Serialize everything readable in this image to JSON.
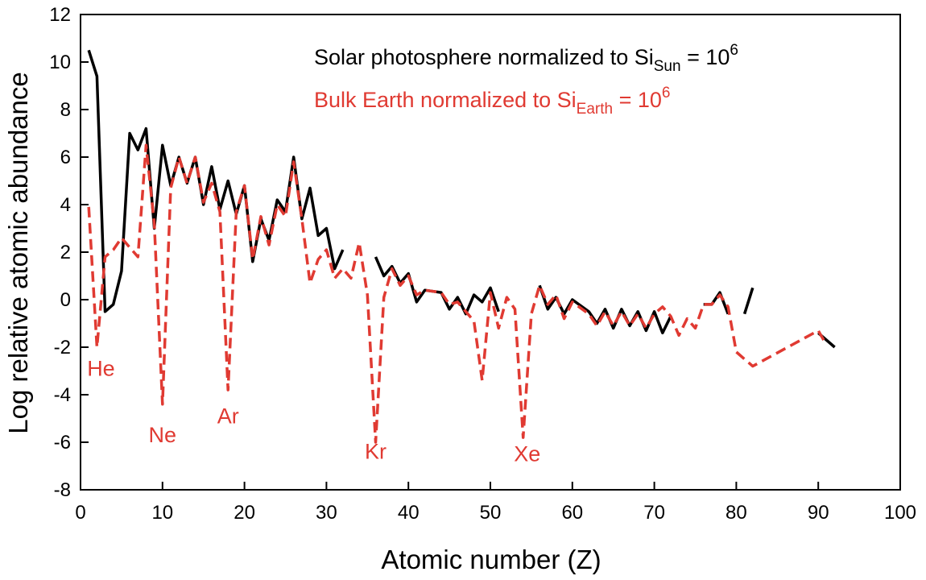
{
  "chart_data": {
    "type": "line",
    "title": "",
    "xlabel": "Atomic number (Z)",
    "ylabel": "Log relative atomic abundance",
    "xlim": [
      0,
      100
    ],
    "ylim": [
      -8,
      12
    ],
    "x_ticks": [
      "0",
      "10",
      "20",
      "30",
      "40",
      "50",
      "60",
      "70",
      "80",
      "90",
      "100"
    ],
    "y_ticks": [
      "-8",
      "-6",
      "-4",
      "-2",
      "0",
      "2",
      "4",
      "6",
      "8",
      "10",
      "12"
    ],
    "grid": false,
    "legend": [
      {
        "main": "Solar photosphere normalized to Si",
        "sub": "Sun",
        "tail": " = 10",
        "sup": "6",
        "color": "#000000",
        "dashed": false
      },
      {
        "main": "Bulk Earth normalized to Si",
        "sub": "Earth",
        "tail": " = 10",
        "sup": "6",
        "color": "#e03a32",
        "dashed": true
      }
    ],
    "series": [
      {
        "name": "Solar photosphere normalized to Si_Sun = 10^6",
        "color": "#000000",
        "dashed": false,
        "segments": [
          [
            [
              1,
              10.5
            ],
            [
              2,
              9.4
            ],
            [
              3,
              -0.5
            ],
            [
              4,
              -0.2
            ],
            [
              5,
              1.2
            ],
            [
              6,
              7.0
            ],
            [
              7,
              6.3
            ],
            [
              8,
              7.2
            ],
            [
              9,
              3.0
            ],
            [
              10,
              6.5
            ],
            [
              11,
              4.8
            ],
            [
              12,
              6.0
            ],
            [
              13,
              4.9
            ],
            [
              14,
              6.0
            ],
            [
              15,
              4.0
            ],
            [
              16,
              5.6
            ],
            [
              17,
              3.8
            ],
            [
              18,
              5.0
            ],
            [
              19,
              3.6
            ],
            [
              20,
              4.8
            ],
            [
              21,
              1.6
            ],
            [
              22,
              3.4
            ],
            [
              23,
              2.5
            ],
            [
              24,
              4.2
            ],
            [
              25,
              3.7
            ],
            [
              26,
              6.0
            ],
            [
              27,
              3.4
            ],
            [
              28,
              4.7
            ],
            [
              29,
              2.7
            ],
            [
              30,
              3.0
            ],
            [
              31,
              1.3
            ],
            [
              32,
              2.1
            ]
          ],
          [
            [
              36,
              1.8
            ],
            [
              37,
              1.0
            ],
            [
              38,
              1.4
            ],
            [
              39,
              0.7
            ],
            [
              40,
              1.1
            ],
            [
              41,
              -0.1
            ],
            [
              42,
              0.4
            ],
            [
              44,
              0.3
            ],
            [
              45,
              -0.4
            ],
            [
              46,
              0.1
            ],
            [
              47,
              -0.6
            ],
            [
              48,
              0.2
            ],
            [
              49,
              -0.1
            ],
            [
              50,
              0.5
            ],
            [
              51,
              -0.5
            ]
          ],
          [
            [
              56,
              0.6
            ],
            [
              57,
              -0.4
            ],
            [
              58,
              0.1
            ],
            [
              59,
              -0.6
            ],
            [
              60,
              0.0
            ],
            [
              62,
              -0.5
            ],
            [
              63,
              -1.0
            ],
            [
              64,
              -0.4
            ],
            [
              65,
              -1.2
            ],
            [
              66,
              -0.4
            ],
            [
              67,
              -1.1
            ],
            [
              68,
              -0.5
            ],
            [
              69,
              -1.3
            ],
            [
              70,
              -0.5
            ],
            [
              71,
              -1.4
            ],
            [
              72,
              -0.7
            ]
          ],
          [
            [
              76,
              -0.2
            ],
            [
              77,
              -0.2
            ],
            [
              78,
              0.3
            ],
            [
              79,
              -0.6
            ]
          ],
          [
            [
              81,
              -0.6
            ],
            [
              82,
              0.5
            ]
          ],
          [
            [
              90,
              -1.4
            ],
            [
              92,
              -2.0
            ]
          ]
        ]
      },
      {
        "name": "Bulk Earth normalized to Si_Earth = 10^6",
        "color": "#e03a32",
        "dashed": true,
        "segments": [
          [
            [
              1,
              3.9
            ],
            [
              2,
              -2.0
            ],
            [
              3,
              1.8
            ],
            [
              4,
              2.1
            ],
            [
              5,
              2.6
            ],
            [
              6,
              2.2
            ],
            [
              7,
              1.8
            ],
            [
              8,
              6.5
            ],
            [
              9,
              3.2
            ],
            [
              10,
              -4.4
            ],
            [
              11,
              4.7
            ],
            [
              12,
              6.0
            ],
            [
              13,
              4.9
            ],
            [
              14,
              6.0
            ],
            [
              15,
              4.1
            ],
            [
              16,
              4.9
            ],
            [
              17,
              3.7
            ],
            [
              18,
              -3.8
            ],
            [
              19,
              3.7
            ],
            [
              20,
              4.8
            ],
            [
              21,
              1.7
            ],
            [
              22,
              3.5
            ],
            [
              23,
              2.3
            ],
            [
              24,
              4.0
            ],
            [
              25,
              3.5
            ],
            [
              26,
              5.8
            ],
            [
              27,
              3.4
            ],
            [
              28,
              0.7
            ],
            [
              29,
              1.7
            ],
            [
              30,
              2.1
            ],
            [
              31,
              0.9
            ],
            [
              32,
              1.3
            ],
            [
              33,
              0.9
            ],
            [
              34,
              2.4
            ],
            [
              35,
              0.2
            ],
            [
              36,
              -6.0
            ],
            [
              37,
              0.1
            ],
            [
              38,
              1.3
            ],
            [
              39,
              0.6
            ],
            [
              40,
              1.0
            ],
            [
              41,
              0.2
            ],
            [
              42,
              0.4
            ],
            [
              44,
              0.3
            ],
            [
              45,
              -0.2
            ],
            [
              46,
              -0.1
            ],
            [
              47,
              -0.5
            ],
            [
              48,
              -0.9
            ],
            [
              49,
              -3.4
            ],
            [
              50,
              0.3
            ],
            [
              51,
              -1.2
            ],
            [
              52,
              0.1
            ],
            [
              53,
              -0.4
            ],
            [
              54,
              -5.8
            ],
            [
              55,
              -0.6
            ],
            [
              56,
              0.6
            ],
            [
              57,
              -0.2
            ],
            [
              58,
              0.2
            ],
            [
              59,
              -0.8
            ],
            [
              60,
              -0.1
            ],
            [
              62,
              -0.6
            ],
            [
              63,
              -1.1
            ],
            [
              64,
              -0.5
            ],
            [
              65,
              -1.1
            ],
            [
              66,
              -0.5
            ],
            [
              67,
              -1.1
            ],
            [
              68,
              -0.6
            ],
            [
              69,
              -1.2
            ],
            [
              70,
              -0.6
            ],
            [
              71,
              -0.3
            ],
            [
              72,
              -0.7
            ],
            [
              73,
              -1.5
            ],
            [
              74,
              -0.8
            ],
            [
              75,
              -1.2
            ],
            [
              76,
              -0.2
            ],
            [
              77,
              -0.2
            ],
            [
              78,
              0.2
            ],
            [
              79,
              -0.3
            ],
            [
              80,
              -2.2
            ],
            [
              82,
              -2.8
            ],
            [
              90,
              -1.3
            ],
            [
              91,
              -1.9
            ]
          ]
        ]
      }
    ],
    "annotations": [
      {
        "text": "He",
        "x": 2.5,
        "y": -3.2
      },
      {
        "text": "Ne",
        "x": 10.0,
        "y": -6.0
      },
      {
        "text": "Ar",
        "x": 18.0,
        "y": -5.2
      },
      {
        "text": "Kr",
        "x": 36.0,
        "y": -6.7
      },
      {
        "text": "Xe",
        "x": 54.5,
        "y": -6.8
      }
    ],
    "colors": {
      "solar": "#000000",
      "earth": "#e03a32",
      "axis": "#000000"
    }
  }
}
